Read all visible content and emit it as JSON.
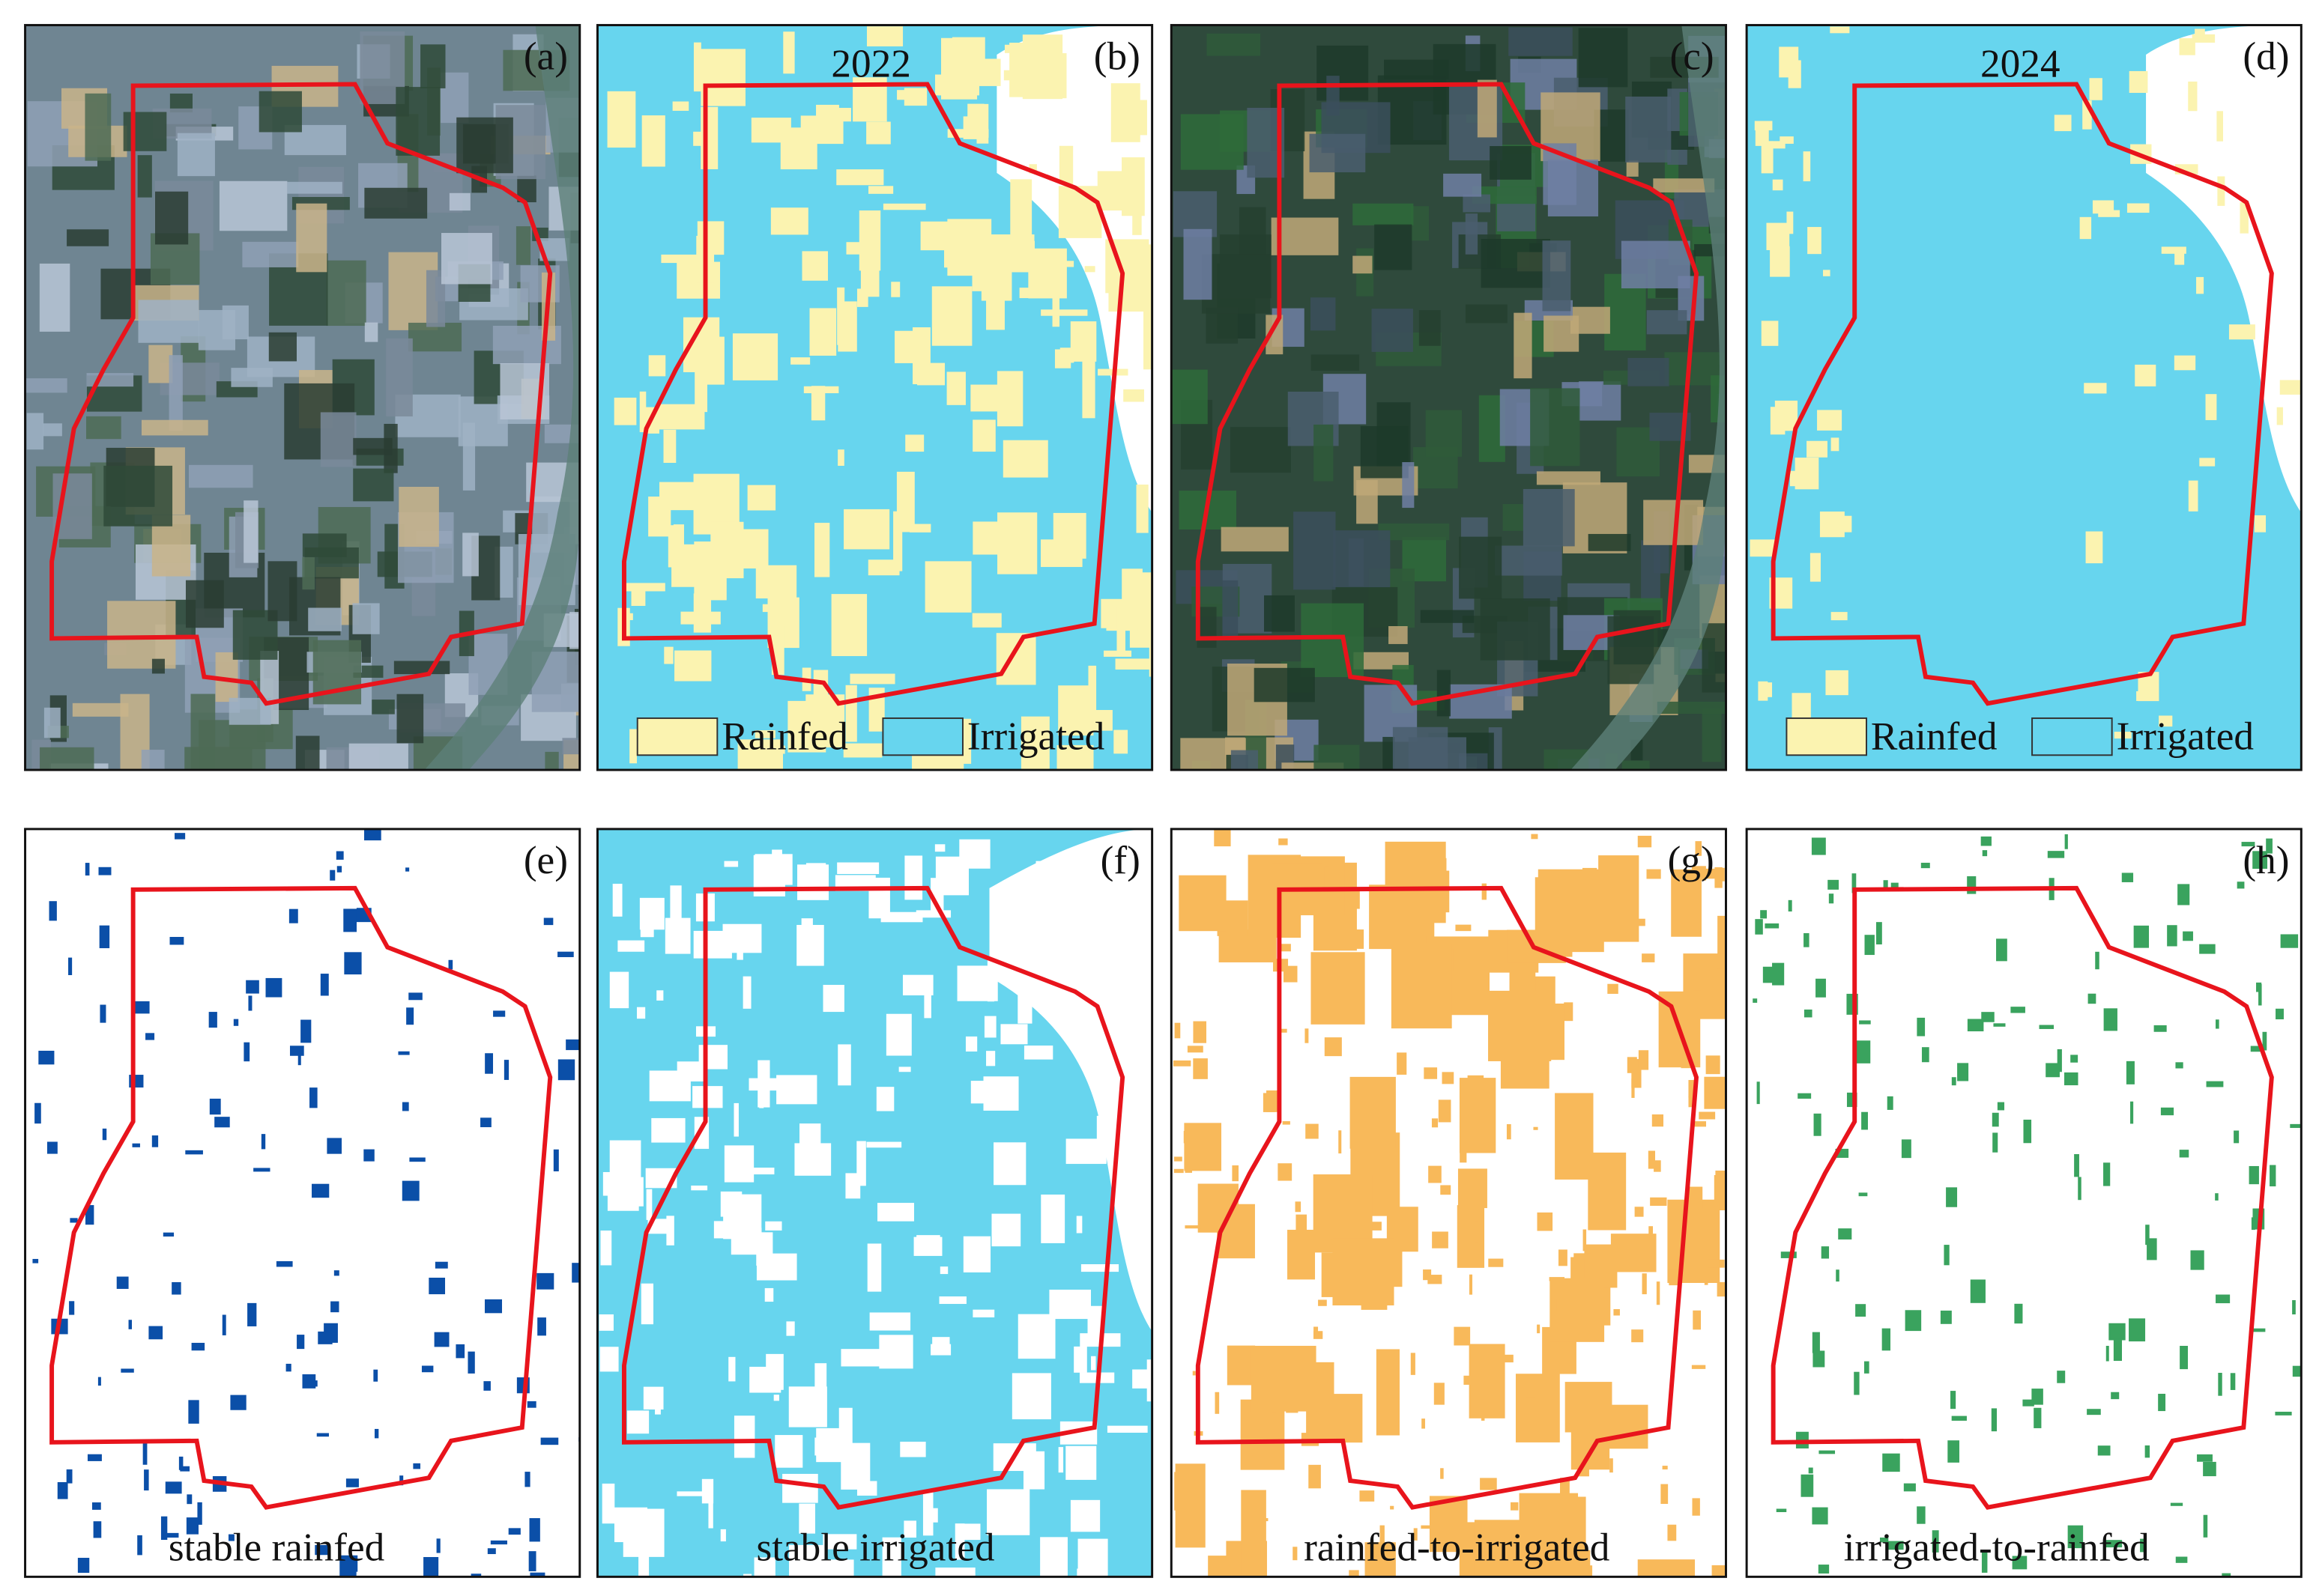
{
  "panels": [
    {
      "label": "(a)"
    },
    {
      "label": "(b)",
      "title": "2022",
      "legend": [
        "Rainfed",
        "Irrigated"
      ]
    },
    {
      "label": "(c)"
    },
    {
      "label": "(d)",
      "title": "2024",
      "legend": [
        "Rainfed",
        "Irrigated"
      ]
    },
    {
      "label": "(e)",
      "caption": "stable rainfed"
    },
    {
      "label": "(f)",
      "caption": "stable irrigated"
    },
    {
      "label": "(g)",
      "caption": "rainfed-to-irrigated"
    },
    {
      "label": "(h)",
      "caption": "irrigated-to-rainfed"
    }
  ]
}
